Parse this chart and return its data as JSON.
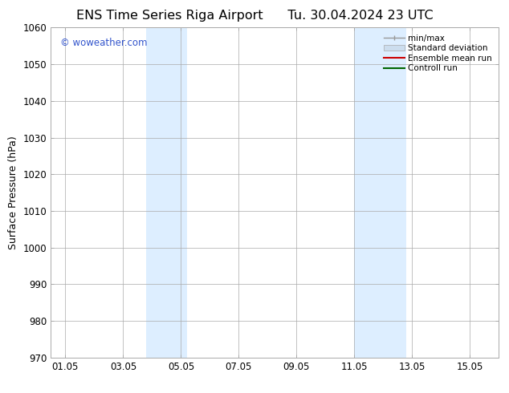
{
  "title_left": "ENS Time Series Riga Airport",
  "title_right": "Tu. 30.04.2024 23 UTC",
  "ylabel": "Surface Pressure (hPa)",
  "xlabel_ticks": [
    "01.05",
    "03.05",
    "05.05",
    "07.05",
    "09.05",
    "11.05",
    "13.05",
    "15.05"
  ],
  "xlabel_tick_positions": [
    1,
    3,
    5,
    7,
    9,
    11,
    13,
    15
  ],
  "ylim": [
    970,
    1060
  ],
  "xlim": [
    0.5,
    16.0
  ],
  "yticks": [
    970,
    980,
    990,
    1000,
    1010,
    1020,
    1030,
    1040,
    1050,
    1060
  ],
  "shaded_bands": [
    {
      "xmin": 3.8,
      "xmax": 5.2
    },
    {
      "xmin": 11.0,
      "xmax": 12.8
    }
  ],
  "shaded_color": "#ddeeff",
  "background_color": "#ffffff",
  "grid_color": "#aaaaaa",
  "watermark_text": "© woweather.com",
  "watermark_color": "#3355cc",
  "legend_entries": [
    {
      "label": "min/max",
      "color": "#999999",
      "lw": 1.0
    },
    {
      "label": "Standard deviation",
      "color": "#ccddee",
      "lw": 5
    },
    {
      "label": "Ensemble mean run",
      "color": "#cc0000",
      "lw": 1.5
    },
    {
      "label": "Controll run",
      "color": "#006600",
      "lw": 1.5
    }
  ],
  "title_fontsize": 11.5,
  "tick_fontsize": 8.5,
  "ylabel_fontsize": 9,
  "legend_fontsize": 7.5,
  "watermark_fontsize": 8.5
}
